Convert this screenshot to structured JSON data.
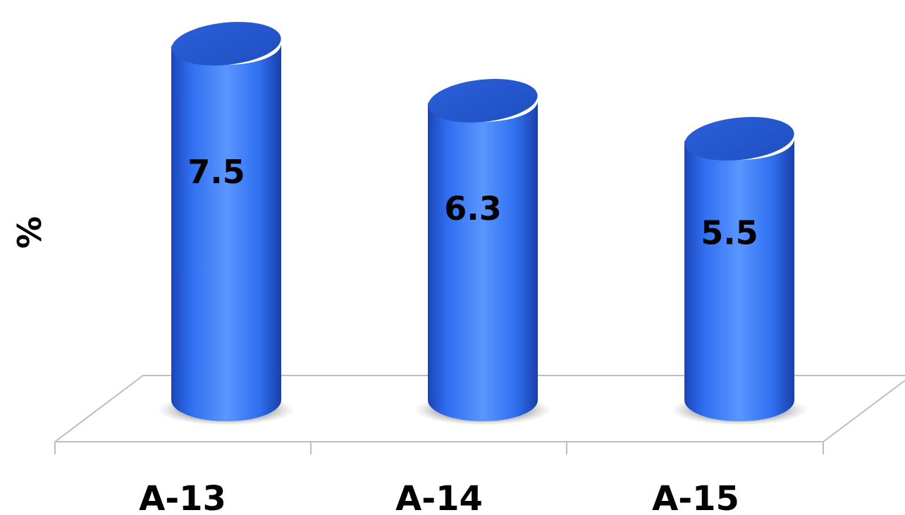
{
  "chart_data": {
    "type": "bar",
    "style": "3d-cylinder",
    "categories": [
      "A-13",
      "A-14",
      "A-15"
    ],
    "values": [
      7.5,
      6.3,
      5.5
    ],
    "data_labels": [
      "7.5",
      "6.3",
      "5.5"
    ],
    "title": "",
    "xlabel": "",
    "ylabel": "%",
    "ylim": [
      0,
      7.5
    ],
    "grid": false,
    "legend": "none",
    "bar_color": "#2f6ff0",
    "bar_highlight": "#5a96ff",
    "bar_shadow": "#1b45b8",
    "floor_line_color": "#bdbdbd"
  }
}
